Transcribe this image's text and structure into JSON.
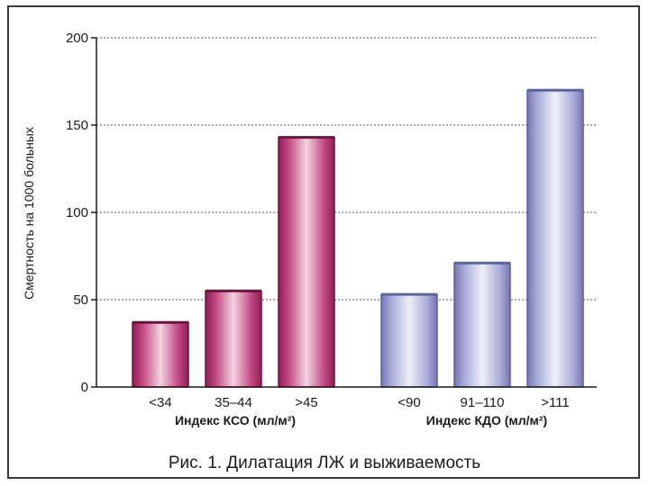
{
  "chart_data": {
    "type": "bar",
    "ylabel": "Смертность на 1000 больных",
    "ylim": [
      0,
      200
    ],
    "yticks": [
      0,
      50,
      100,
      150,
      200
    ],
    "grid": true,
    "caption": "Рис. 1. Дилатация ЛЖ и выживаемость",
    "groups": [
      {
        "label": "Индекс КСО (мл/м²)",
        "color": "#b0306e",
        "categories": [
          "<34",
          "35–44",
          ">45"
        ],
        "values": [
          37,
          55,
          143
        ]
      },
      {
        "label": "Индекс КДО (мл/м²)",
        "color": "#8f91c8",
        "categories": [
          "<90",
          "91–110",
          ">111"
        ],
        "values": [
          53,
          71,
          170
        ]
      }
    ]
  }
}
